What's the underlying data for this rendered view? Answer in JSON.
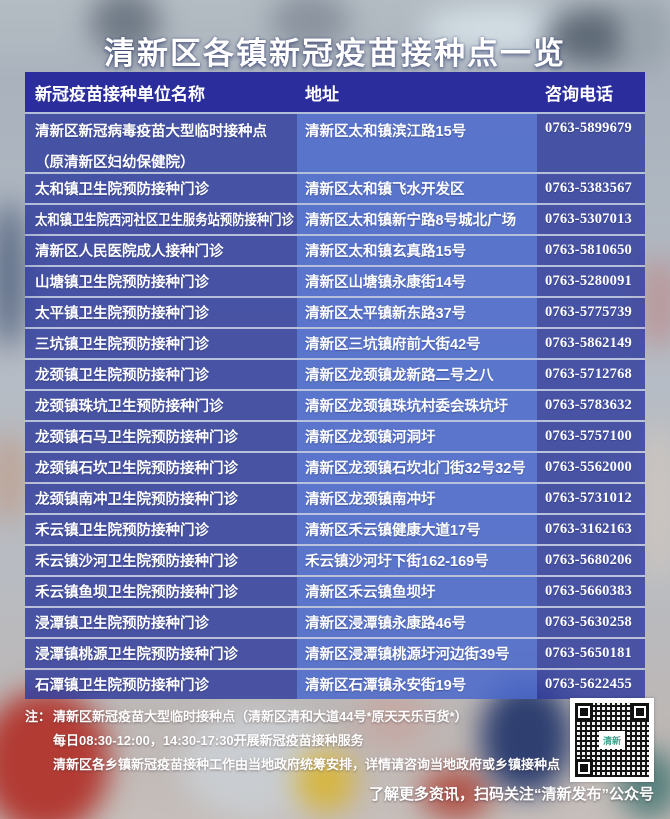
{
  "title": "清新区各镇新冠疫苗接种点一览",
  "colors": {
    "header_bar": "#2a2d9b",
    "row_blue": "#2f3c9e",
    "address_blue": "#4a69cd",
    "text": "#ffffff",
    "qr_logo_teal": "#43a08e"
  },
  "table": {
    "headers": [
      "新冠疫苗接种单位名称",
      "地址",
      "咨询电话"
    ],
    "rows": [
      {
        "name": "清新区新冠病毒疫苗大型临时接种点",
        "name2": "（原清新区妇幼保健院）",
        "address": "清新区太和镇滨江路15号",
        "phone": "0763-5899679"
      },
      {
        "name": "太和镇卫生院预防接种门诊",
        "address": "清新区太和镇飞水开发区",
        "phone": "0763-5383567"
      },
      {
        "name": "太和镇卫生院西河社区卫生服务站预防接种门诊",
        "address": "清新区太和镇新宁路8号城北广场",
        "phone": "0763-5307013"
      },
      {
        "name": "清新区人民医院成人接种门诊",
        "address": "清新区太和镇玄真路15号",
        "phone": "0763-5810650"
      },
      {
        "name": "山塘镇卫生院预防接种门诊",
        "address": "清新区山塘镇永康街14号",
        "phone": "0763-5280091"
      },
      {
        "name": "太平镇卫生院预防接种门诊",
        "address": "清新区太平镇新东路37号",
        "phone": "0763-5775739"
      },
      {
        "name": "三坑镇卫生院预防接种门诊",
        "address": "清新区三坑镇府前大街42号",
        "phone": "0763-5862149"
      },
      {
        "name": "龙颈镇卫生院预防接种门诊",
        "address": "清新区龙颈镇龙新路二号之八",
        "phone": "0763-5712768"
      },
      {
        "name": "龙颈镇珠坑卫生预防接种门诊",
        "address": "清新区龙颈镇珠坑村委会珠坑圩",
        "phone": "0763-5783632"
      },
      {
        "name": "龙颈镇石马卫生院预防接种门诊",
        "address": "清新区龙颈镇河洞圩",
        "phone": "0763-5757100"
      },
      {
        "name": "龙颈镇石坎卫生院预防接种门诊",
        "address": "清新区龙颈镇石坎北门街32号32号",
        "phone": "0763-5562000"
      },
      {
        "name": "龙颈镇南冲卫生院预防接种门诊",
        "address": "清新区龙颈镇南冲圩",
        "phone": "0763-5731012"
      },
      {
        "name": "禾云镇卫生院预防接种门诊",
        "address": "清新区禾云镇健康大道17号",
        "phone": "0763-3162163"
      },
      {
        "name": "禾云镇沙河卫生院预防接种门诊",
        "address": "禾云镇沙河圩下街162-169号",
        "phone": "0763-5680206"
      },
      {
        "name": "禾云镇鱼坝卫生院预防接种门诊",
        "address": "清新区禾云镇鱼坝圩",
        "phone": "0763-5660383"
      },
      {
        "name": "浸潭镇卫生院预防接种门诊",
        "address": "清新区浸潭镇永康路46号",
        "phone": "0763-5630258"
      },
      {
        "name": "浸潭镇桃源卫生院预防接种门诊",
        "address": "清新区浸潭镇桃源圩河边街39号",
        "phone": "0763-5650181"
      },
      {
        "name": "石潭镇卫生院预防接种门诊",
        "address": "清新区石潭镇永安街19号",
        "phone": "0763-5622455"
      }
    ]
  },
  "notes": {
    "label": "注：",
    "lines": [
      "清新区新冠疫苗大型临时接种点（清新区清和大道44号*原天天乐百货*）",
      "每日08:30-12:00，14:30-17:30开展新冠疫苗接种服务",
      "清新区各乡镇新冠疫苗接种工作由当地政府统筹安排，详情请咨询当地政府或乡镇接种点"
    ]
  },
  "qr": {
    "logo_text": "清新",
    "caption": "了解更多资讯，扫码关注“清新发布”公众号"
  }
}
